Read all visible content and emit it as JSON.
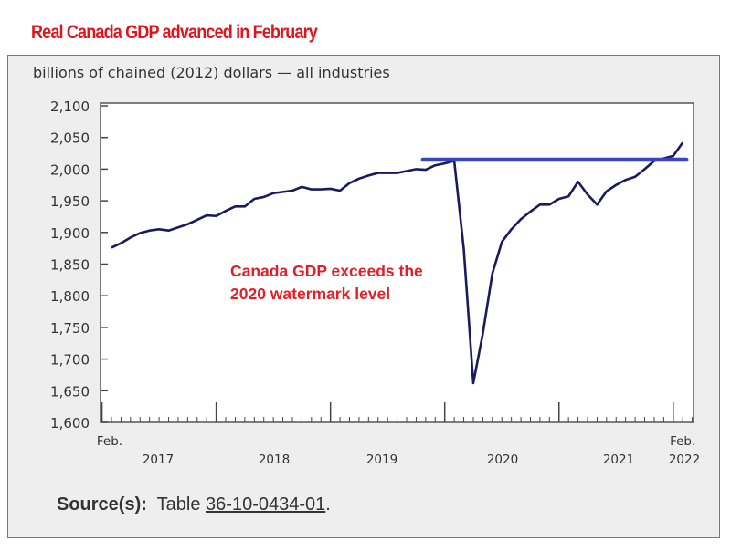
{
  "header": {
    "title": "Real Canada GDP advanced in February"
  },
  "chart_data": {
    "type": "line",
    "title": "Real Canada GDP advanced in February",
    "ylabel": "billions of chained (2012) dollars — all industries",
    "xlabel": "",
    "ylim": [
      1600,
      2100
    ],
    "yticks": [
      "2,100",
      "2,050",
      "2,000",
      "1,950",
      "1,900",
      "1,850",
      "1,800",
      "1,750",
      "1,700",
      "1,650",
      "1,600"
    ],
    "ytick_values": [
      2100,
      2050,
      2000,
      1950,
      1900,
      1850,
      1800,
      1750,
      1700,
      1650,
      1600
    ],
    "x_start": "2017-02",
    "x_end": "2022-02",
    "x_frequency": "monthly",
    "x_labels": {
      "start_month": "Feb.",
      "end_month": "Feb.",
      "years": [
        "2017",
        "2018",
        "2019",
        "2020",
        "2021",
        "2022"
      ]
    },
    "grid": false,
    "series": [
      {
        "color": "#1a1a5e",
        "values": [
          1876,
          1883,
          1892,
          1899,
          1903,
          1905,
          1903,
          1908,
          1913,
          1920,
          1927,
          1926,
          1934,
          1941,
          1941,
          1953,
          1956,
          1962,
          1964,
          1966,
          1972,
          1968,
          1968,
          1969,
          1966,
          1978,
          1985,
          1990,
          1994,
          1994,
          1994,
          1997,
          2000,
          1999,
          2006,
          2009,
          2013,
          1874,
          1662,
          1740,
          1835,
          1885,
          1905,
          1921,
          1933,
          1944,
          1944,
          1953,
          1957,
          1980,
          1960,
          1944,
          1965,
          1975,
          1983,
          1988,
          2000,
          2013,
          2017,
          2021,
          2042
        ]
      }
    ],
    "reference_line": {
      "value": 2015,
      "from": "2019-11",
      "to": "2022-02",
      "color": "#3a46c0"
    },
    "annotation": {
      "lines": [
        "Canada GDP exceeds the",
        "2020 watermark level"
      ],
      "color": "#e41e26"
    }
  },
  "footer": {
    "source_label": "Source(s):",
    "source_text": "Table ",
    "source_link": "36-10-0434-01",
    "source_end": "."
  }
}
